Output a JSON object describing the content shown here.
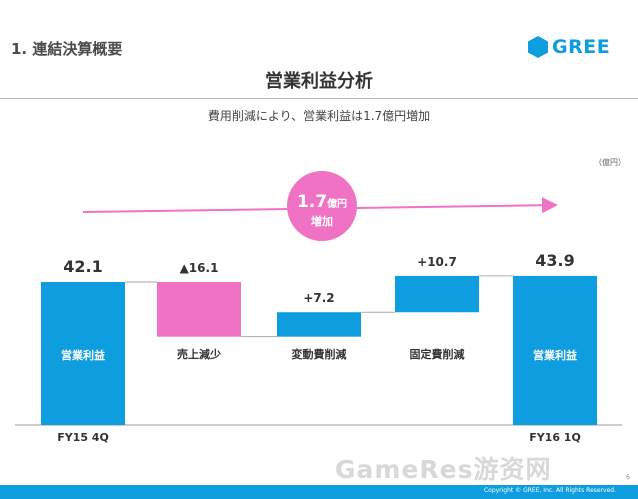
{
  "header": {
    "section_title": "1. 連結決算概要",
    "logo_text": "GREE",
    "brand_color": "#0e9ddf"
  },
  "title": "営業利益分析",
  "subtitle": "費用削減により、営業利益は1.7億円増加",
  "unit_label": "（億円）",
  "callout": {
    "value": "1.7",
    "unit": "億円",
    "text": "増加",
    "color": "#f072c4"
  },
  "chart_data": {
    "type": "bar",
    "subtype": "waterfall",
    "categories": [
      "営業利益",
      "売上減少",
      "変動費削減",
      "固定費削減",
      "営業利益"
    ],
    "values": [
      42.1,
      -16.1,
      7.2,
      10.7,
      43.9
    ],
    "measures": [
      "total",
      "relative",
      "relative",
      "relative",
      "total"
    ],
    "value_labels": [
      "42.1",
      "▲16.1",
      "+7.2",
      "+10.7",
      "43.9"
    ],
    "x_period_labels": [
      "FY15 4Q",
      "",
      "",
      "",
      "FY16 1Q"
    ],
    "colors": {
      "total": "#0e9ddf",
      "decrease": "#f072c4",
      "increase": "#0e9ddf"
    },
    "ylim": [
      0,
      50
    ],
    "grid": false,
    "legend": "none"
  },
  "footer": {
    "page_number": "6",
    "copyright": "Copyright © GREE, Inc. All Rights Reserved.",
    "watermark": "GameRes游资网"
  }
}
